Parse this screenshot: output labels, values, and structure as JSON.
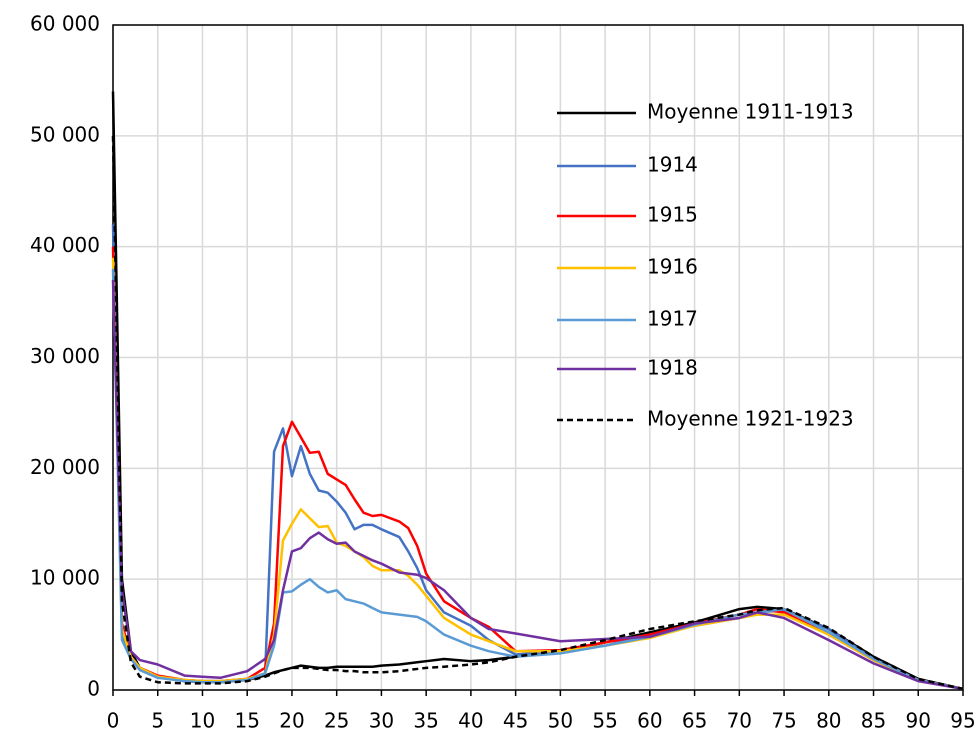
{
  "chart_data": {
    "type": "line",
    "x": [
      0,
      1,
      2,
      3,
      5,
      8,
      10,
      12,
      15,
      17,
      18,
      19,
      20,
      21,
      22,
      23,
      24,
      25,
      26,
      27,
      28,
      29,
      30,
      32,
      33,
      34,
      35,
      37,
      40,
      42,
      45,
      50,
      55,
      60,
      65,
      70,
      72,
      75,
      80,
      85,
      90,
      95
    ],
    "series": [
      {
        "name": "Moyenne 1911-1913",
        "color": "#000000",
        "dashed": false,
        "values": [
          54000,
          10000,
          3500,
          2000,
          1200,
          800,
          700,
          700,
          900,
          1300,
          1600,
          1800,
          2000,
          2200,
          2100,
          2000,
          2000,
          2100,
          2100,
          2100,
          2100,
          2100,
          2200,
          2300,
          2400,
          2500,
          2600,
          2800,
          2600,
          2700,
          3000,
          3500,
          4300,
          5200,
          6100,
          7300,
          7500,
          7300,
          5500,
          3000,
          1000,
          100
        ]
      },
      {
        "name": "1914",
        "color": "#4472c4",
        "dashed": false,
        "values": [
          42000,
          5000,
          3000,
          2000,
          1200,
          900,
          800,
          800,
          1000,
          1500,
          21500,
          23600,
          19300,
          22000,
          19500,
          18000,
          17800,
          17000,
          16000,
          14500,
          14900,
          14900,
          14500,
          13800,
          12500,
          11000,
          9000,
          7000,
          5800,
          4500,
          3200,
          3500,
          4000,
          5000,
          5800,
          6500,
          7000,
          7200,
          5500,
          2800,
          900,
          100
        ]
      },
      {
        "name": "1915",
        "color": "#ff0000",
        "dashed": false,
        "values": [
          40000,
          6000,
          3000,
          2000,
          1300,
          900,
          800,
          800,
          1000,
          2000,
          6000,
          22000,
          24200,
          22800,
          21400,
          21500,
          19500,
          19000,
          18500,
          17200,
          16000,
          15700,
          15800,
          15200,
          14600,
          13000,
          10500,
          8000,
          6500,
          5700,
          3500,
          3600,
          4300,
          5000,
          6000,
          6800,
          7300,
          7000,
          5000,
          2700,
          900,
          100
        ]
      },
      {
        "name": "1916",
        "color": "#ffc000",
        "dashed": false,
        "values": [
          39000,
          5500,
          3000,
          2000,
          1200,
          900,
          800,
          800,
          1000,
          1500,
          5000,
          13500,
          15000,
          16300,
          15500,
          14700,
          14800,
          13300,
          13000,
          12500,
          12000,
          11200,
          10800,
          10800,
          10300,
          9500,
          8500,
          6500,
          5000,
          4400,
          3500,
          3500,
          4000,
          4700,
          5800,
          6500,
          6800,
          6800,
          5000,
          2700,
          900,
          100
        ]
      },
      {
        "name": "1917",
        "color": "#5b9bd5",
        "dashed": false,
        "values": [
          38000,
          4500,
          2800,
          1800,
          1100,
          800,
          700,
          700,
          900,
          1500,
          4000,
          8800,
          8900,
          9500,
          10000,
          9300,
          8800,
          9000,
          8200,
          8000,
          7800,
          7400,
          7000,
          6800,
          6700,
          6600,
          6200,
          5000,
          4000,
          3500,
          3000,
          3300,
          4000,
          4800,
          5900,
          6800,
          7000,
          7300,
          5200,
          2800,
          900,
          100
        ]
      },
      {
        "name": "1918",
        "color": "#7030a0",
        "dashed": false,
        "values": [
          37000,
          9000,
          3500,
          2700,
          2300,
          1300,
          1200,
          1100,
          1700,
          2800,
          4500,
          9000,
          12500,
          12800,
          13700,
          14200,
          13600,
          13200,
          13300,
          12500,
          12100,
          11700,
          11400,
          10600,
          10500,
          10400,
          10100,
          9000,
          6500,
          5500,
          5100,
          4400,
          4600,
          4800,
          6000,
          6500,
          7000,
          6500,
          4500,
          2400,
          800,
          100
        ]
      },
      {
        "name": "Moyenne 1921-1923",
        "color": "#000000",
        "dashed": true,
        "values": [
          50000,
          8000,
          2500,
          1200,
          700,
          600,
          600,
          600,
          800,
          1200,
          1500,
          1800,
          2000,
          2000,
          2000,
          1900,
          1800,
          1800,
          1700,
          1700,
          1600,
          1600,
          1600,
          1700,
          1800,
          1900,
          2000,
          2100,
          2300,
          2500,
          3000,
          3600,
          4500,
          5500,
          6200,
          6800,
          7200,
          7400,
          5600,
          3000,
          1000,
          100
        ]
      }
    ],
    "xlim": [
      0,
      95
    ],
    "xticks": [
      0,
      5,
      10,
      15,
      20,
      25,
      30,
      35,
      40,
      45,
      50,
      55,
      60,
      65,
      70,
      75,
      80,
      85,
      90,
      95
    ],
    "ylim": [
      0,
      60000
    ],
    "yticks": [
      {
        "value": 0,
        "label": "0"
      },
      {
        "value": 10000,
        "label": "10 000"
      },
      {
        "value": 20000,
        "label": "20 000"
      },
      {
        "value": 30000,
        "label": "30 000"
      },
      {
        "value": 40000,
        "label": "40 000"
      },
      {
        "value": 50000,
        "label": "50 000"
      },
      {
        "value": 60000,
        "label": "60 000"
      }
    ],
    "grid": true,
    "legend": "upper-right"
  }
}
